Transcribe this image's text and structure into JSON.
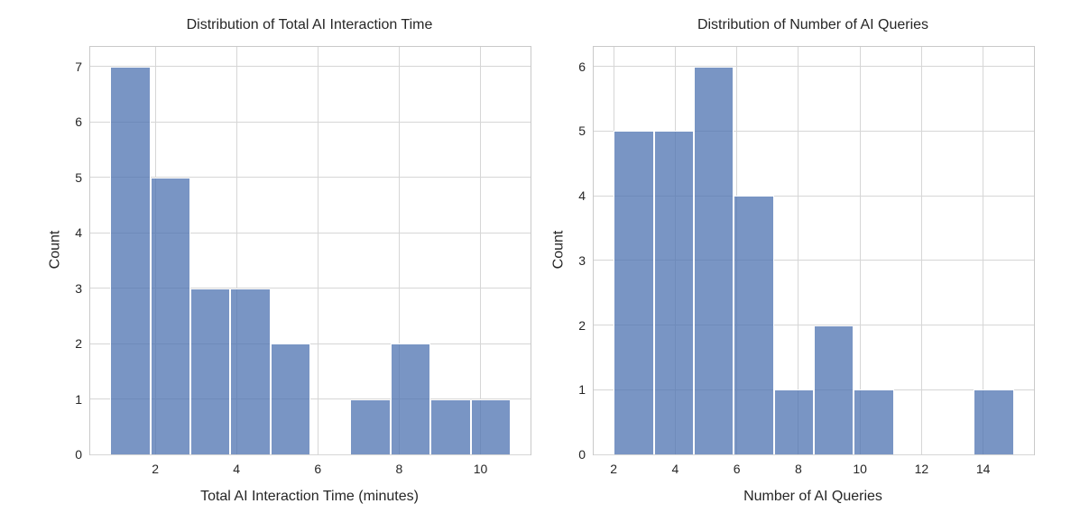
{
  "figure": {
    "background": "#ffffff",
    "bar_color": "#4C72B0",
    "bar_alpha": 0.75,
    "bar_edge_color": "#ffffff",
    "grid_color": "#d6d6d6",
    "spine_color": "#c9c9c9",
    "text_color": "#262626"
  },
  "chart_data": [
    {
      "type": "bar",
      "subtype": "histogram",
      "title": "Distribution of Total AI Interaction Time",
      "xlabel": "Total AI Interaction Time (minutes)",
      "ylabel": "Count",
      "bin_edges": [
        0.89,
        1.88,
        2.86,
        3.85,
        4.83,
        5.82,
        6.8,
        7.79,
        8.77,
        9.76,
        10.74
      ],
      "counts": [
        7,
        5,
        3,
        3,
        2,
        0,
        1,
        2,
        1,
        1
      ],
      "xlim": [
        0.4,
        11.23
      ],
      "ylim": [
        0,
        7.35
      ],
      "xticks": [
        2,
        4,
        6,
        8,
        10
      ],
      "yticks": [
        0,
        1,
        2,
        3,
        4,
        5,
        6,
        7
      ],
      "grid": true,
      "legend": null
    },
    {
      "type": "bar",
      "subtype": "histogram",
      "title": "Distribution of Number of AI Queries",
      "xlabel": "Number of AI Queries",
      "ylabel": "Count",
      "bin_edges": [
        2.0,
        3.3,
        4.6,
        5.9,
        7.2,
        8.5,
        9.8,
        11.1,
        12.4,
        13.7,
        15.0
      ],
      "counts": [
        5,
        5,
        6,
        4,
        1,
        2,
        1,
        0,
        0,
        1
      ],
      "xlim": [
        1.35,
        15.65
      ],
      "ylim": [
        0,
        6.3
      ],
      "xticks": [
        2,
        4,
        6,
        8,
        10,
        12,
        14
      ],
      "yticks": [
        0,
        1,
        2,
        3,
        4,
        5,
        6
      ],
      "grid": true,
      "legend": null
    }
  ]
}
